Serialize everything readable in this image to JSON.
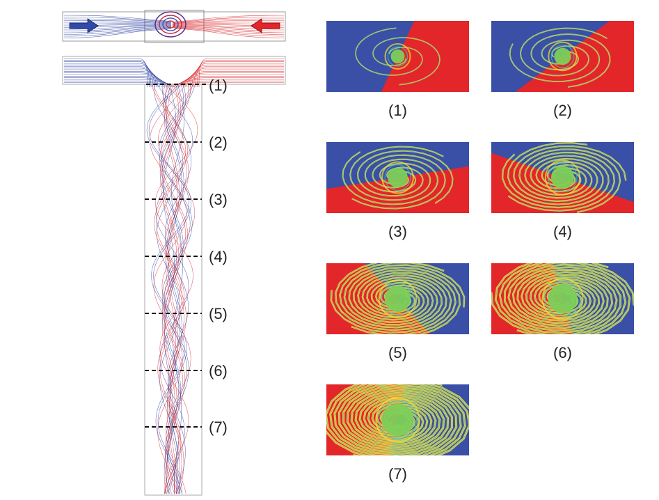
{
  "section_labels": [
    "(1)",
    "(2)",
    "(3)",
    "(4)",
    "(5)",
    "(6)",
    "(7)"
  ],
  "panel_labels": [
    "(1)",
    "(2)",
    "(3)",
    "(4)",
    "(5)",
    "(6)",
    "(7)"
  ],
  "colors": {
    "fluid_a": "#3a4fa6",
    "fluid_b": "#e3262a",
    "mixed": "#7ccf5a",
    "interface": "#f4e23a",
    "cyan": "#35c7c9",
    "streamline_blue": "#2b3fa0",
    "streamline_red": "#d8262b"
  },
  "icons": {
    "left_inlet_arrow": "arrow-right-icon",
    "right_inlet_arrow": "arrow-left-icon"
  }
}
